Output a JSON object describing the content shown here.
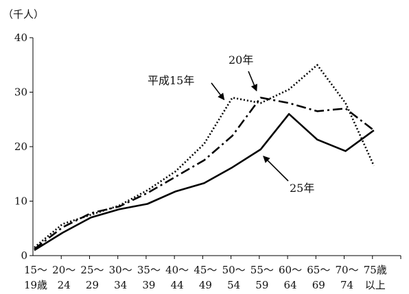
{
  "chart_data": {
    "type": "line",
    "ylabel": "（千人）",
    "ylim": [
      0,
      40
    ],
    "yticks": [
      "0",
      "10",
      "20",
      "30",
      "40"
    ],
    "grid": false,
    "legend": "none",
    "categories": [
      {
        "top": "15～",
        "bottom": "19歳"
      },
      {
        "top": "20～",
        "bottom": "24"
      },
      {
        "top": "25～",
        "bottom": "29"
      },
      {
        "top": "30～",
        "bottom": "34"
      },
      {
        "top": "35～",
        "bottom": "39"
      },
      {
        "top": "40～",
        "bottom": "44"
      },
      {
        "top": "45～",
        "bottom": "49"
      },
      {
        "top": "50～",
        "bottom": "54"
      },
      {
        "top": "55～",
        "bottom": "59"
      },
      {
        "top": "60～",
        "bottom": "64"
      },
      {
        "top": "65～",
        "bottom": "69"
      },
      {
        "top": "70～",
        "bottom": "74"
      },
      {
        "top": "75歳",
        "bottom": "以上"
      }
    ],
    "series": [
      {
        "name": "平成15年",
        "style": "dotted",
        "values": [
          1.5,
          5.8,
          7.5,
          9.2,
          12.0,
          15.5,
          20.5,
          29.0,
          28.0,
          30.5,
          35.0,
          28.0,
          16.5
        ]
      },
      {
        "name": "20年",
        "style": "dashdot",
        "values": [
          1.2,
          5.2,
          7.8,
          9.0,
          11.5,
          14.5,
          17.5,
          22.0,
          29.0,
          28.0,
          26.5,
          27.0,
          23.0
        ]
      },
      {
        "name": "25年",
        "style": "solid",
        "values": [
          1.0,
          4.2,
          7.0,
          8.5,
          9.5,
          11.8,
          13.3,
          16.2,
          19.5,
          26.0,
          21.3,
          19.2,
          23.0
        ]
      }
    ],
    "annotations": [
      {
        "text": "平成15年",
        "series": 0
      },
      {
        "text": "20年",
        "series": 1
      },
      {
        "text": "25年",
        "series": 2
      }
    ]
  }
}
